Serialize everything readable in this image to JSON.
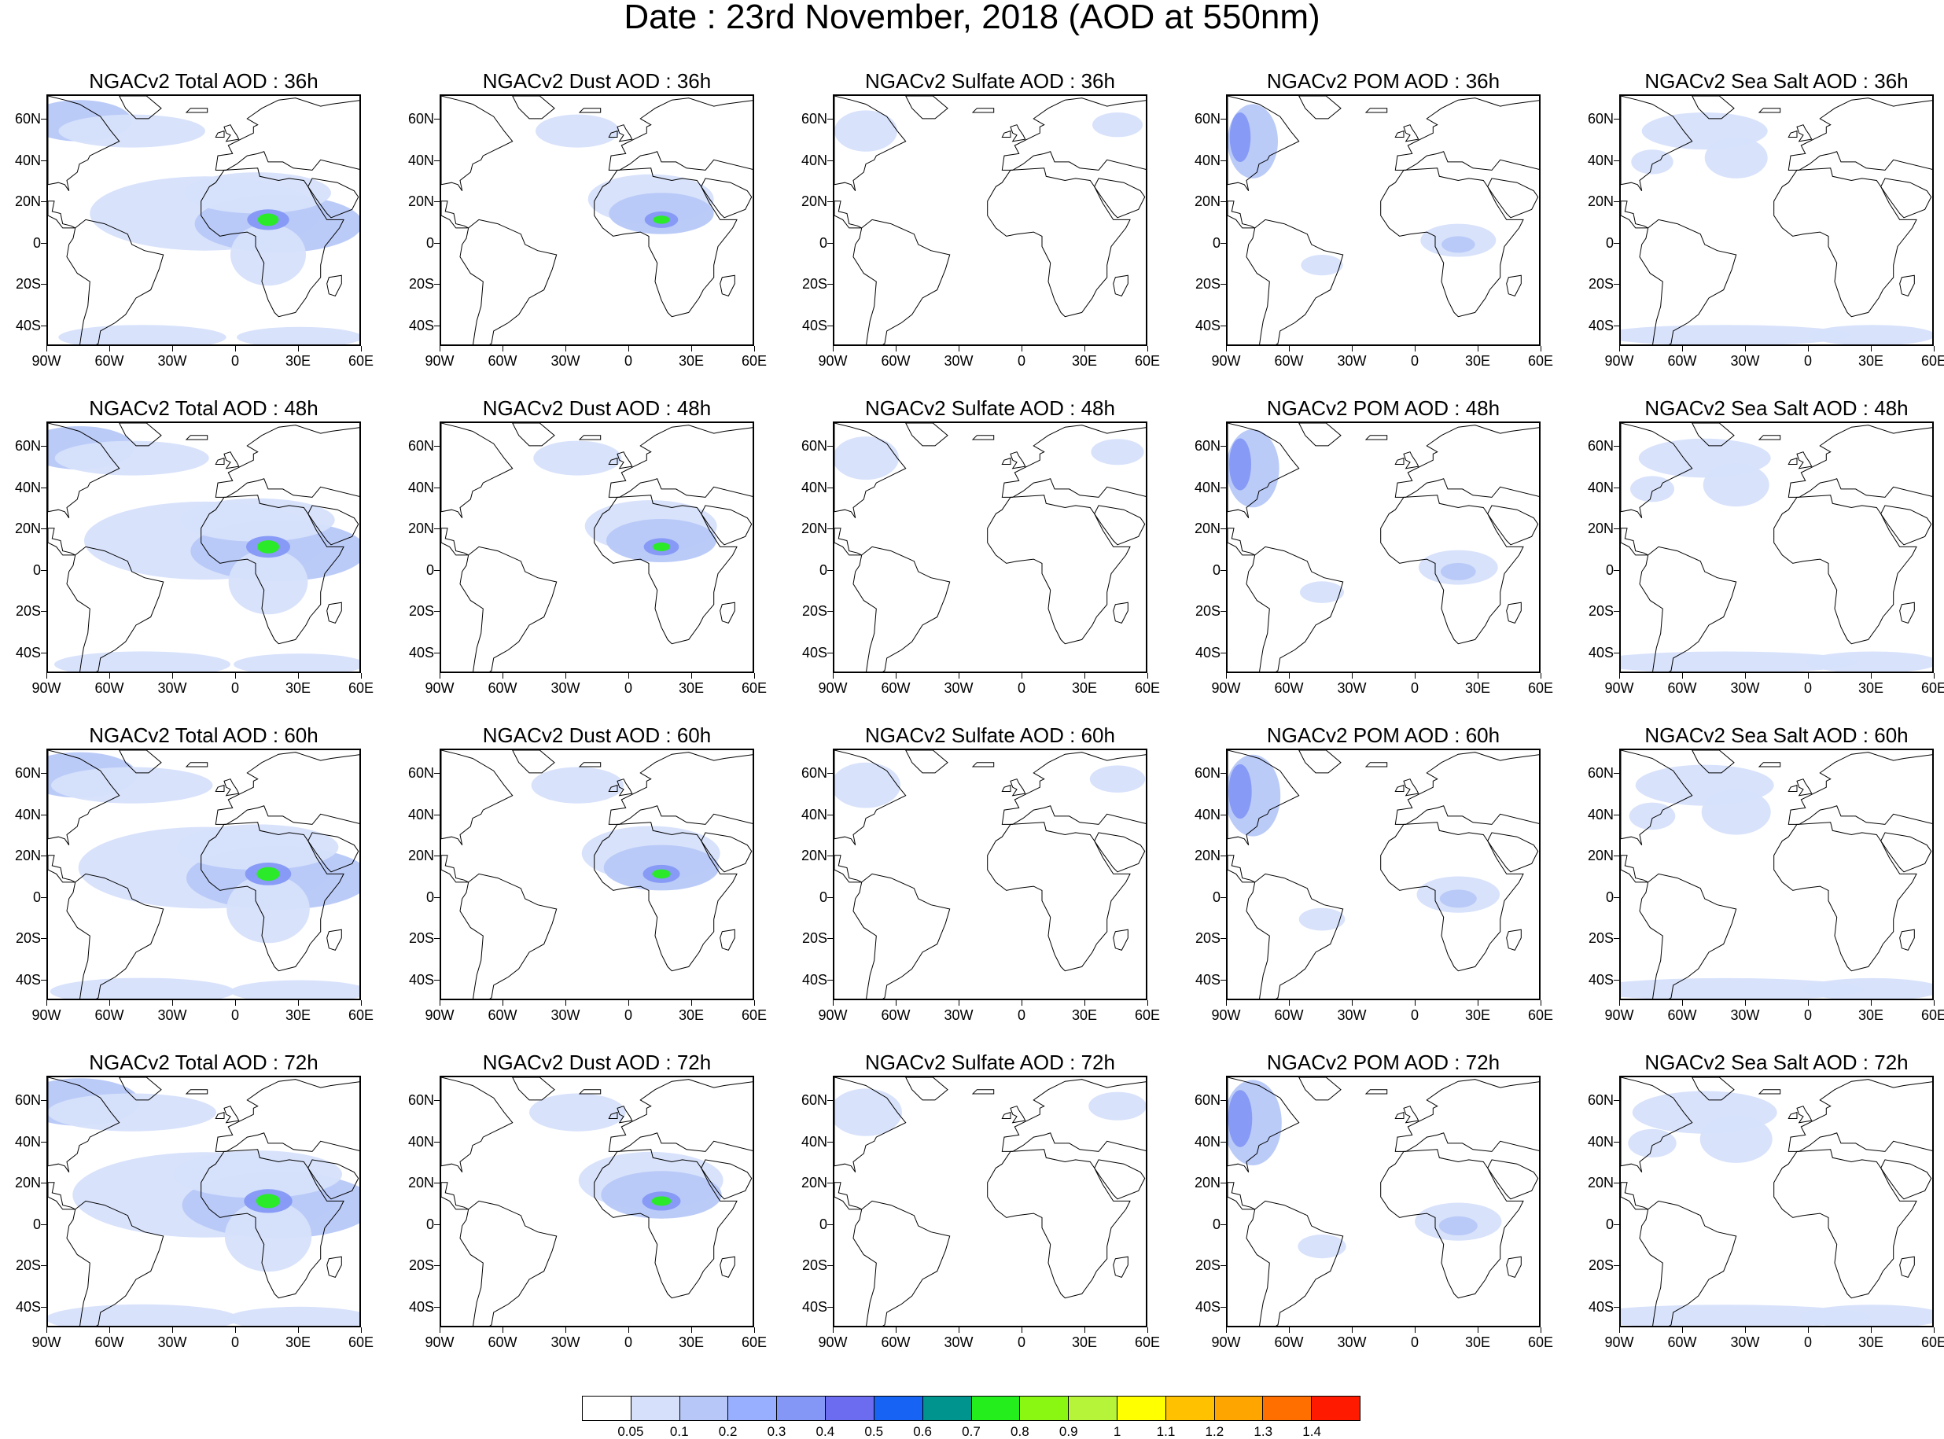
{
  "title": "Date : 23rd November, 2018 (AOD at 550nm)",
  "lat_labels": [
    "60N",
    "40N",
    "20N",
    "0",
    "20S",
    "40S"
  ],
  "lat_values": [
    60,
    40,
    20,
    0,
    -20,
    -40
  ],
  "lon_labels": [
    "90W",
    "60W",
    "30W",
    "0",
    "30E",
    "60E"
  ],
  "lon_values": [
    -90,
    -60,
    -30,
    0,
    30,
    60
  ],
  "map_extent": {
    "lon": [
      -90,
      60
    ],
    "lat": [
      -50,
      72
    ]
  },
  "rows": [
    {
      "lead": "36h",
      "panels": [
        {
          "type": "total",
          "title": "NGACv2 Total AOD : 36h"
        },
        {
          "type": "dust",
          "title": "NGACv2 Dust AOD : 36h"
        },
        {
          "type": "sulfate",
          "title": "NGACv2 Sulfate AOD : 36h"
        },
        {
          "type": "pom",
          "title": "NGACv2 POM AOD : 36h"
        },
        {
          "type": "seasalt",
          "title": "NGACv2 Sea Salt AOD : 36h"
        }
      ]
    },
    {
      "lead": "48h",
      "panels": [
        {
          "type": "total",
          "title": "NGACv2 Total AOD : 48h"
        },
        {
          "type": "dust",
          "title": "NGACv2 Dust AOD : 48h"
        },
        {
          "type": "sulfate",
          "title": "NGACv2 Sulfate AOD : 48h"
        },
        {
          "type": "pom",
          "title": "NGACv2 POM AOD : 48h"
        },
        {
          "type": "seasalt",
          "title": "NGACv2 Sea Salt AOD : 48h"
        }
      ]
    },
    {
      "lead": "60h",
      "panels": [
        {
          "type": "total",
          "title": "NGACv2 Total AOD : 60h"
        },
        {
          "type": "dust",
          "title": "NGACv2 Dust AOD : 60h"
        },
        {
          "type": "sulfate",
          "title": "NGACv2 Sulfate AOD : 60h"
        },
        {
          "type": "pom",
          "title": "NGACv2 POM AOD : 60h"
        },
        {
          "type": "seasalt",
          "title": "NGACv2 Sea Salt AOD : 60h"
        }
      ]
    },
    {
      "lead": "72h",
      "panels": [
        {
          "type": "total",
          "title": "NGACv2 Total AOD : 72h"
        },
        {
          "type": "dust",
          "title": "NGACv2 Dust AOD : 72h"
        },
        {
          "type": "sulfate",
          "title": "NGACv2 Sulfate AOD : 72h"
        },
        {
          "type": "pom",
          "title": "NGACv2 POM AOD : 72h"
        },
        {
          "type": "seasalt",
          "title": "NGACv2 Sea Salt  AOD : 72h"
        }
      ]
    }
  ],
  "colorbar": {
    "labels": [
      "0.05",
      "0.1",
      "0.2",
      "0.3",
      "0.4",
      "0.5",
      "0.6",
      "0.7",
      "0.8",
      "0.9",
      "1",
      "1.1",
      "1.2",
      "1.3",
      "1.4"
    ],
    "colors": [
      "#ffffff",
      "#d6e0fb",
      "#b7c8f8",
      "#98afff",
      "#8497f6",
      "#6b6cf0",
      "#1763f3",
      "#00948f",
      "#25ee1d",
      "#8af713",
      "#b5f438",
      "#ffff00",
      "#ffc100",
      "#ffa500",
      "#ff6f00",
      "#ff1a00"
    ]
  },
  "colors": {
    "land_outline": "#000000",
    "aerosol_light": "#d6e0fb",
    "aerosol_mid": "#98afff",
    "aerosol_high": "#6b6cf0"
  }
}
